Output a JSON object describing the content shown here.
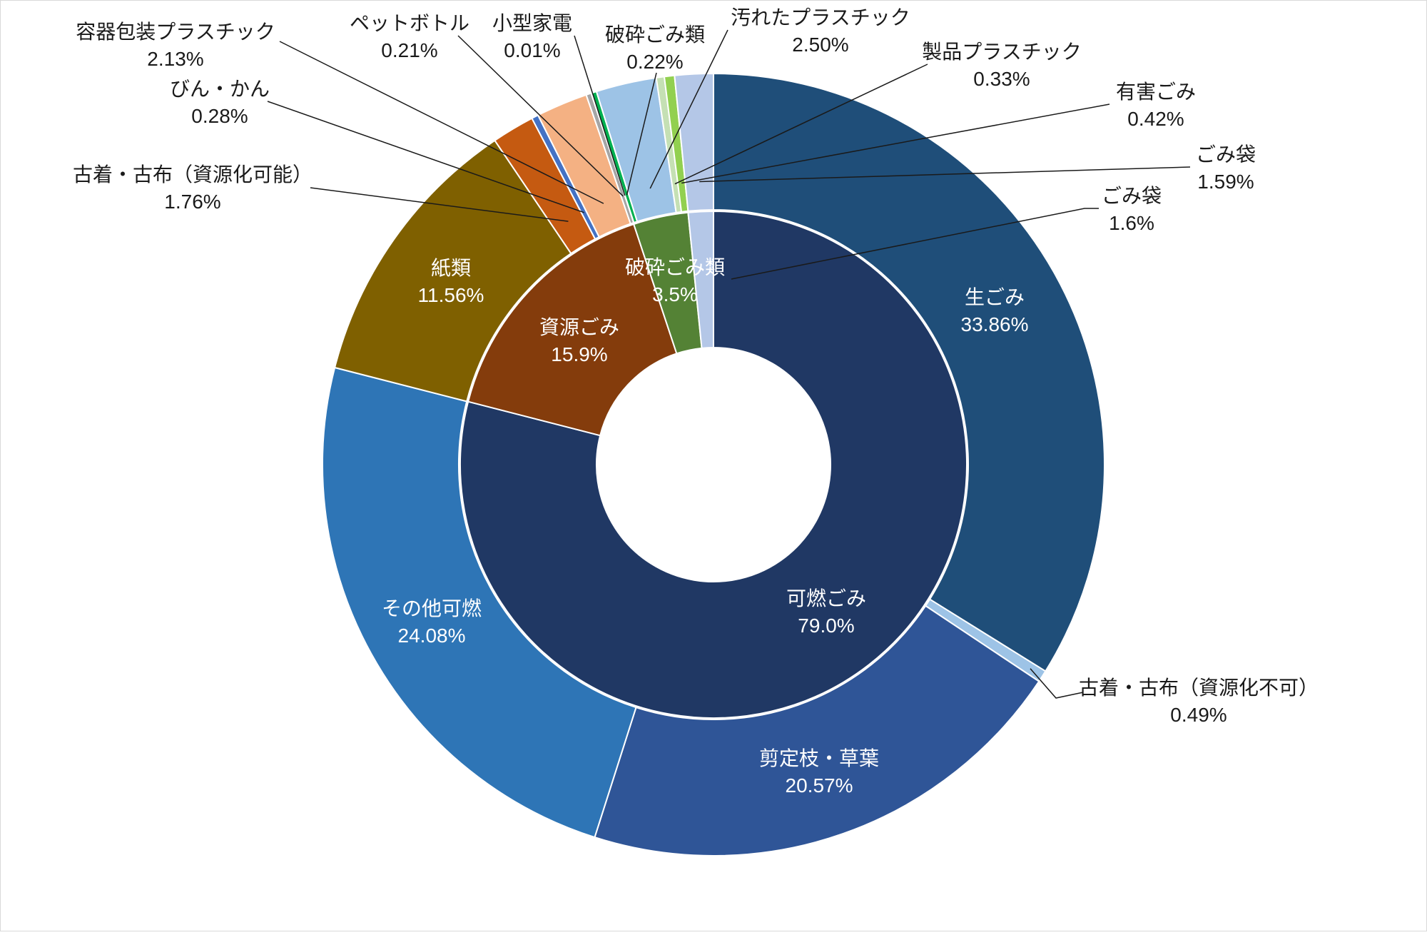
{
  "chart_data": {
    "type": "pie",
    "subtype": "nested-donut",
    "legend": "none",
    "inner_ring": [
      {
        "label": "可燃ごみ",
        "value": 79.0,
        "value_text": "79.0%",
        "color": "#203864"
      },
      {
        "label": "資源ごみ",
        "value": 15.9,
        "value_text": "15.9%",
        "color": "#843C0C"
      },
      {
        "label": "破砕ごみ類",
        "value": 3.5,
        "value_text": "3.5%",
        "color": "#548235"
      },
      {
        "label": "ごみ袋",
        "value": 1.6,
        "value_text": "1.6%",
        "color": "#B4C7E7"
      }
    ],
    "outer_ring": [
      {
        "label": "生ごみ",
        "value": 33.86,
        "value_text": "33.86%",
        "color": "#1F4E79"
      },
      {
        "label": "古着・古布（資源化不可）",
        "value": 0.49,
        "value_text": "0.49%",
        "color": "#9DC3E6"
      },
      {
        "label": "剪定枝・草葉",
        "value": 20.57,
        "value_text": "20.57%",
        "color": "#2F5597"
      },
      {
        "label": "その他可燃",
        "value": 24.08,
        "value_text": "24.08%",
        "color": "#2E75B6"
      },
      {
        "label": "紙類",
        "value": 11.56,
        "value_text": "11.56%",
        "color": "#7F6000"
      },
      {
        "label": "古着・古布（資源化可能）",
        "value": 1.76,
        "value_text": "1.76%",
        "color": "#C55A11"
      },
      {
        "label": "びん・かん",
        "value": 0.28,
        "value_text": "0.28%",
        "color": "#4472C4"
      },
      {
        "label": "容器包装プラスチック",
        "value": 2.13,
        "value_text": "2.13%",
        "color": "#F4B183"
      },
      {
        "label": "ペットボトル",
        "value": 0.21,
        "value_text": "0.21%",
        "color": "#A5A5A5"
      },
      {
        "label": "小型家電",
        "value": 0.01,
        "value_text": "0.01%",
        "color": "#70AD47"
      },
      {
        "label": "破砕ごみ類",
        "value": 0.22,
        "value_text": "0.22%",
        "color": "#00B050"
      },
      {
        "label": "汚れたプラスチック",
        "value": 2.5,
        "value_text": "2.50%",
        "color": "#9DC3E6"
      },
      {
        "label": "製品プラスチック",
        "value": 0.33,
        "value_text": "0.33%",
        "color": "#C5E0B4"
      },
      {
        "label": "有害ごみ",
        "value": 0.42,
        "value_text": "0.42%",
        "color": "#92D050"
      },
      {
        "label": "ごみ袋",
        "value": 1.59,
        "value_text": "1.59%",
        "color": "#B4C7E7"
      }
    ]
  }
}
